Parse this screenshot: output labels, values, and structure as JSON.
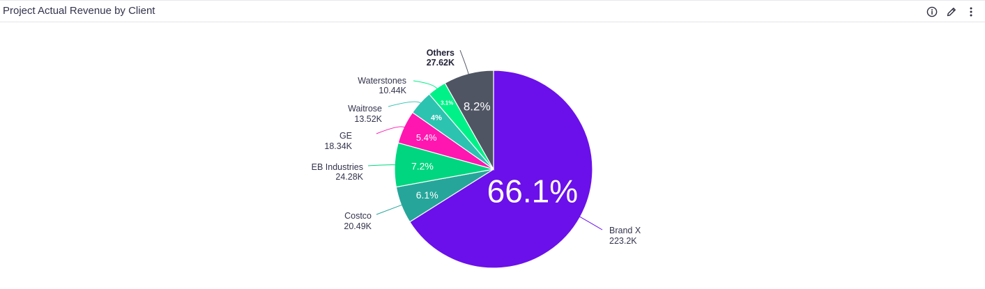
{
  "header": {
    "title": "Project Actual Revenue by Client",
    "info_icon": "info-icon",
    "edit_icon": "pencil-icon",
    "menu_icon": "more-vertical-icon"
  },
  "chart_data": {
    "type": "pie",
    "title": "Project Actual Revenue by Client",
    "slices": [
      {
        "name": "Brand X",
        "value_label": "223.2K",
        "value": 223200,
        "percent_label": "66.1%",
        "color": "#6b10ea"
      },
      {
        "name": "Costco",
        "value_label": "20.49K",
        "value": 20490,
        "percent_label": "6.1%",
        "color": "#26a69a"
      },
      {
        "name": "EB Industries",
        "value_label": "24.28K",
        "value": 24280,
        "percent_label": "7.2%",
        "color": "#00d67f"
      },
      {
        "name": "GE",
        "value_label": "18.34K",
        "value": 18340,
        "percent_label": "5.4%",
        "color": "#ff16b0"
      },
      {
        "name": "Waitrose",
        "value_label": "13.52K",
        "value": 13520,
        "percent_label": "4%",
        "color": "#2cc3b0"
      },
      {
        "name": "Waterstones",
        "value_label": "10.44K",
        "value": 10440,
        "percent_label": "3.1%",
        "color": "#00f188"
      },
      {
        "name": "Others",
        "value_label": "27.62K",
        "value": 27620,
        "percent_label": "8.2%",
        "color": "#505564"
      }
    ]
  }
}
